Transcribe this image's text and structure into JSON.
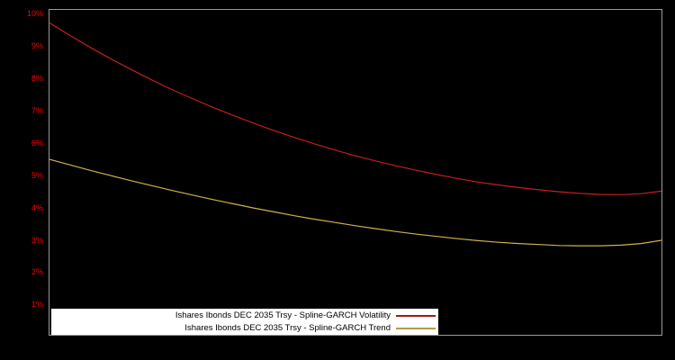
{
  "chart_data": {
    "type": "line",
    "title": "",
    "xlabel": "",
    "ylabel": "",
    "grid": false,
    "background_color": "#000000",
    "border_color": "#9a9a9a",
    "axis_label_color": "#ff0000",
    "ylim": [
      0.08,
      10.12
    ],
    "yticks": [
      {
        "value": 1,
        "label": "1%"
      },
      {
        "value": 2,
        "label": "2%"
      },
      {
        "value": 3,
        "label": "3%"
      },
      {
        "value": 4,
        "label": "4%"
      },
      {
        "value": 5,
        "label": "5%"
      },
      {
        "value": 6,
        "label": "6%"
      },
      {
        "value": 7,
        "label": "7%"
      },
      {
        "value": 8,
        "label": "8%"
      },
      {
        "value": 9,
        "label": "9%"
      },
      {
        "value": 10,
        "label": "10%"
      }
    ],
    "series": [
      {
        "name": "Ishares Ibonds DEC 2035 Trsy - Spline-GARCH Volatility",
        "color": "#c41e1e",
        "values": [
          9.72,
          9.33,
          8.96,
          8.61,
          8.28,
          7.96,
          7.66,
          7.38,
          7.11,
          6.86,
          6.62,
          6.39,
          6.18,
          5.98,
          5.79,
          5.61,
          5.45,
          5.3,
          5.16,
          5.03,
          4.91,
          4.8,
          4.71,
          4.63,
          4.56,
          4.5,
          4.45,
          4.42,
          4.41,
          4.44,
          4.52
        ]
      },
      {
        "name": "Ishares Ibonds DEC 2035 Trsy - Spline-GARCH Trend",
        "color": "#ccb24c",
        "values": [
          5.5,
          5.33,
          5.16,
          5.0,
          4.84,
          4.69,
          4.54,
          4.4,
          4.26,
          4.13,
          4.0,
          3.88,
          3.76,
          3.65,
          3.55,
          3.45,
          3.36,
          3.27,
          3.19,
          3.12,
          3.05,
          2.99,
          2.94,
          2.9,
          2.87,
          2.84,
          2.83,
          2.83,
          2.85,
          2.9,
          3.0
        ]
      }
    ],
    "legend_position": "bottom-left-inside"
  },
  "legend": {
    "background_color": "#ffffff",
    "entries": [
      {
        "label": "Ishares Ibonds DEC 2035 Trsy - Spline-GARCH Volatility",
        "color": "#a01818"
      },
      {
        "label": "Ishares Ibonds DEC 2035 Trsy - Spline-GARCH Trend",
        "color": "#b39d3e"
      }
    ]
  }
}
